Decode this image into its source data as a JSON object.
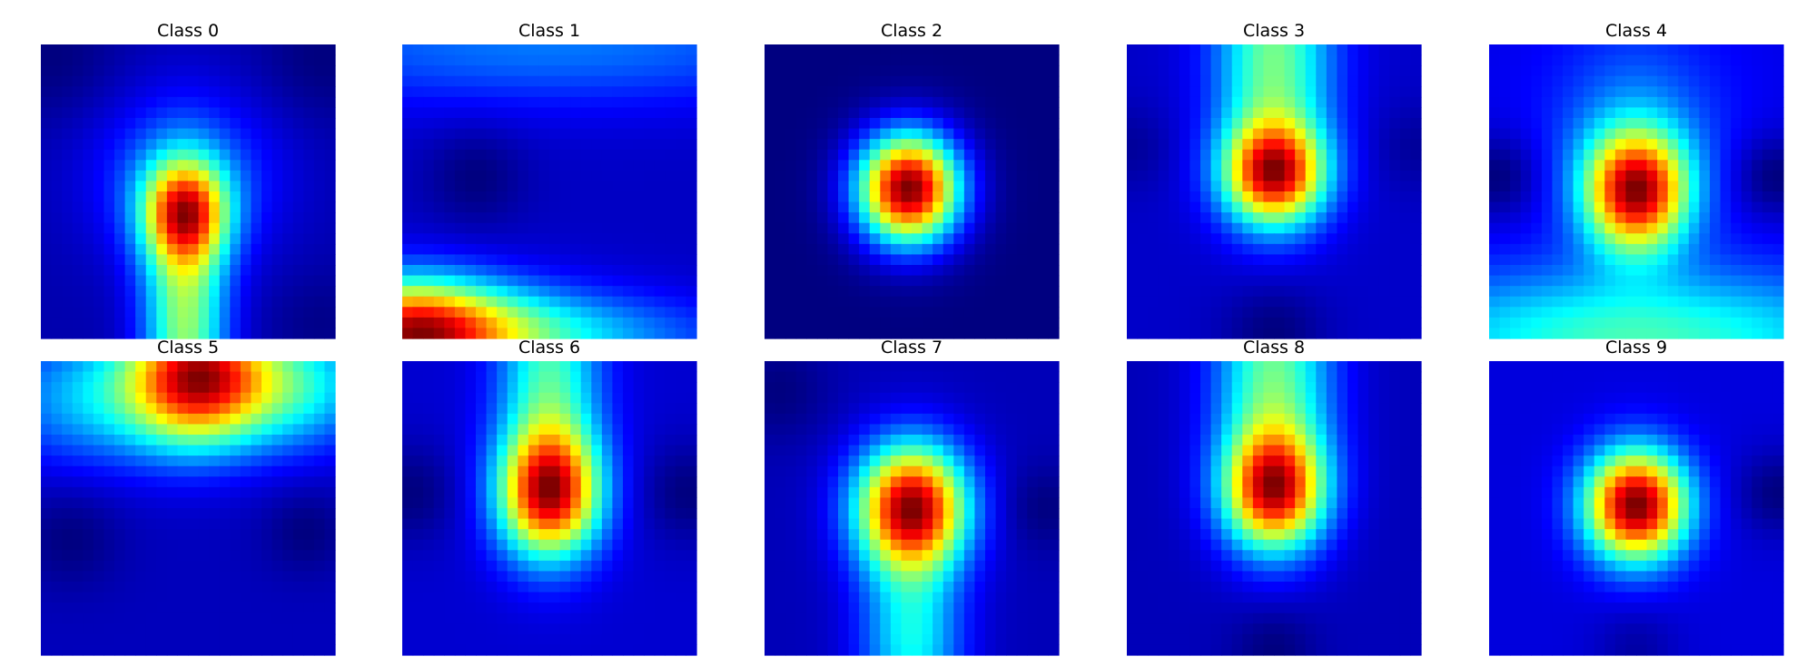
{
  "chart_data": {
    "type": "heatmap",
    "colormap": "jet",
    "grid": false,
    "axes": "hidden",
    "resolution": 28,
    "panels": [
      {
        "title": "Class 0",
        "blobs": [
          {
            "cx": 0.49,
            "cy": 0.57,
            "sx": 0.1,
            "sy": 0.12,
            "amp": 1.0
          },
          {
            "cx": 0.49,
            "cy": 0.95,
            "sx": 0.1,
            "sy": 0.3,
            "amp": 0.78
          },
          {
            "cx": 0.49,
            "cy": 0.45,
            "sx": 0.22,
            "sy": 0.2,
            "amp": 0.3
          }
        ],
        "base": 0.1,
        "dark_spots": [
          {
            "cx": 0.05,
            "cy": 0.05,
            "s": 0.15,
            "amp": 0.08
          },
          {
            "cx": 0.95,
            "cy": 0.05,
            "s": 0.15,
            "amp": 0.08
          },
          {
            "cx": 0.95,
            "cy": 0.95,
            "s": 0.12,
            "amp": 0.06
          }
        ]
      },
      {
        "title": "Class 1",
        "blobs": [
          {
            "cx": 0.02,
            "cy": 0.98,
            "sx": 0.22,
            "sy": 0.13,
            "amp": 1.0
          },
          {
            "cx": 0.2,
            "cy": 0.98,
            "sx": 0.35,
            "sy": 0.12,
            "amp": 0.55
          },
          {
            "cx": 0.6,
            "cy": 1.0,
            "sx": 0.45,
            "sy": 0.1,
            "amp": 0.25
          },
          {
            "cx": 0.5,
            "cy": 0.0,
            "sx": 0.8,
            "sy": 0.15,
            "amp": 0.3
          }
        ],
        "base": 0.18,
        "dark_spots": [
          {
            "cx": 0.25,
            "cy": 0.45,
            "s": 0.12,
            "amp": 0.12
          }
        ]
      },
      {
        "title": "Class 2",
        "blobs": [
          {
            "cx": 0.49,
            "cy": 0.49,
            "sx": 0.12,
            "sy": 0.13,
            "amp": 1.0
          }
        ],
        "base": 0.08,
        "dark_spots": []
      },
      {
        "title": "Class 3",
        "blobs": [
          {
            "cx": 0.5,
            "cy": 0.44,
            "sx": 0.12,
            "sy": 0.12,
            "amp": 1.0
          },
          {
            "cx": 0.5,
            "cy": 0.05,
            "sx": 0.14,
            "sy": 0.3,
            "amp": 0.55
          }
        ],
        "base": 0.16,
        "dark_spots": [
          {
            "cx": 0.5,
            "cy": 0.98,
            "s": 0.12,
            "amp": 0.1
          },
          {
            "cx": 0.02,
            "cy": 0.35,
            "s": 0.1,
            "amp": 0.06
          },
          {
            "cx": 0.98,
            "cy": 0.35,
            "s": 0.1,
            "amp": 0.06
          }
        ]
      },
      {
        "title": "Class 4",
        "blobs": [
          {
            "cx": 0.5,
            "cy": 0.5,
            "sx": 0.12,
            "sy": 0.14,
            "amp": 1.0
          },
          {
            "cx": 0.5,
            "cy": 1.0,
            "sx": 0.6,
            "sy": 0.16,
            "amp": 0.42
          },
          {
            "cx": 0.5,
            "cy": 0.3,
            "sx": 0.2,
            "sy": 0.25,
            "amp": 0.18
          }
        ],
        "base": 0.2,
        "dark_spots": [
          {
            "cx": 0.03,
            "cy": 0.45,
            "s": 0.1,
            "amp": 0.14
          },
          {
            "cx": 0.97,
            "cy": 0.45,
            "s": 0.1,
            "amp": 0.14
          }
        ]
      },
      {
        "title": "Class 5",
        "blobs": [
          {
            "cx": 0.53,
            "cy": 0.05,
            "sx": 0.16,
            "sy": 0.16,
            "amp": 1.0
          },
          {
            "cx": 0.85,
            "cy": 0.08,
            "sx": 0.2,
            "sy": 0.15,
            "amp": 0.45
          },
          {
            "cx": 0.2,
            "cy": 0.12,
            "sx": 0.25,
            "sy": 0.16,
            "amp": 0.35
          }
        ],
        "base": 0.16,
        "dark_spots": [
          {
            "cx": 0.1,
            "cy": 0.6,
            "s": 0.12,
            "amp": 0.08
          },
          {
            "cx": 0.9,
            "cy": 0.58,
            "s": 0.1,
            "amp": 0.08
          }
        ]
      },
      {
        "title": "Class 6",
        "blobs": [
          {
            "cx": 0.5,
            "cy": 0.45,
            "sx": 0.12,
            "sy": 0.15,
            "amp": 1.0
          },
          {
            "cx": 0.5,
            "cy": 0.05,
            "sx": 0.12,
            "sy": 0.28,
            "amp": 0.45
          }
        ],
        "base": 0.15,
        "dark_spots": [
          {
            "cx": 0.03,
            "cy": 0.45,
            "s": 0.12,
            "amp": 0.1
          },
          {
            "cx": 0.97,
            "cy": 0.45,
            "s": 0.12,
            "amp": 0.1
          }
        ]
      },
      {
        "title": "Class 7",
        "blobs": [
          {
            "cx": 0.5,
            "cy": 0.5,
            "sx": 0.13,
            "sy": 0.15,
            "amp": 1.0
          },
          {
            "cx": 0.5,
            "cy": 0.95,
            "sx": 0.12,
            "sy": 0.2,
            "amp": 0.35
          }
        ],
        "base": 0.16,
        "dark_spots": [
          {
            "cx": 0.05,
            "cy": 0.1,
            "s": 0.12,
            "amp": 0.06
          },
          {
            "cx": 0.95,
            "cy": 0.5,
            "s": 0.1,
            "amp": 0.06
          }
        ]
      },
      {
        "title": "Class 8",
        "blobs": [
          {
            "cx": 0.5,
            "cy": 0.44,
            "sx": 0.12,
            "sy": 0.14,
            "amp": 1.0
          },
          {
            "cx": 0.5,
            "cy": 0.05,
            "sx": 0.14,
            "sy": 0.3,
            "amp": 0.55
          }
        ],
        "base": 0.16,
        "dark_spots": [
          {
            "cx": 0.5,
            "cy": 0.98,
            "s": 0.1,
            "amp": 0.08
          }
        ]
      },
      {
        "title": "Class 9",
        "blobs": [
          {
            "cx": 0.5,
            "cy": 0.49,
            "sx": 0.12,
            "sy": 0.13,
            "amp": 1.0
          }
        ],
        "base": 0.14,
        "dark_spots": [
          {
            "cx": 0.98,
            "cy": 0.45,
            "s": 0.1,
            "amp": 0.1
          },
          {
            "cx": 0.5,
            "cy": 0.98,
            "s": 0.1,
            "amp": 0.06
          }
        ]
      }
    ]
  }
}
